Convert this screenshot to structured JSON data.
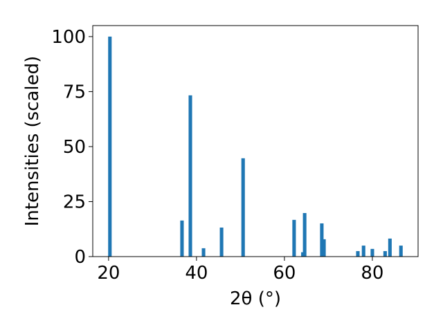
{
  "chart_data": {
    "type": "bar",
    "xlabel": "2θ (°)",
    "ylabel": "Intensities (scaled)",
    "x": [
      20.3,
      36.7,
      38.6,
      41.6,
      45.7,
      50.6,
      62.2,
      64.2,
      64.6,
      68.5,
      69.0,
      76.7,
      78.0,
      80.0,
      82.9,
      84.0,
      86.5
    ],
    "values": [
      100,
      16.4,
      73.3,
      3.8,
      13.2,
      44.7,
      16.7,
      2,
      19.8,
      15.1,
      7.9,
      2.5,
      5.0,
      3.5,
      2.5,
      8.2,
      5.0
    ],
    "color": "#1f77b4",
    "xlim": [
      16.4,
      90.4
    ],
    "xticks": [
      20,
      40,
      60,
      80
    ],
    "ylim": [
      0,
      105
    ],
    "yticks": [
      0,
      25,
      50,
      75,
      100
    ]
  }
}
